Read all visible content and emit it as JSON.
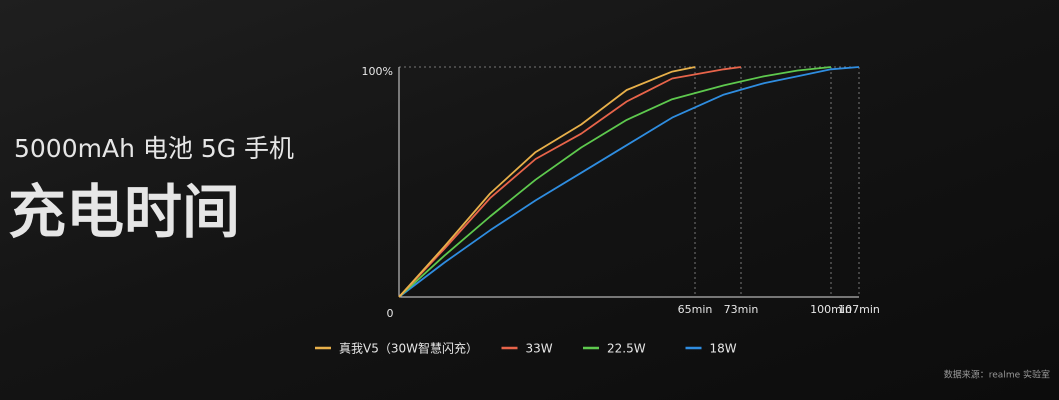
{
  "chart_data": {
    "type": "line",
    "subtitle": "5000mAh 电池 5G 手机",
    "title": "充电时间",
    "source": "数据来源：realme 实验室",
    "xlim": [
      0,
      107
    ],
    "xticks": [
      {
        "value": 65,
        "label": "65min"
      },
      {
        "value": 73,
        "label": "73min"
      },
      {
        "value": 100,
        "label": "100min"
      },
      {
        "value": 107,
        "label": "107min"
      }
    ],
    "ylim": [
      0,
      100
    ],
    "yticks": [
      0,
      {
        "value": 100,
        "label": "100%"
      }
    ],
    "grid": true,
    "legend": "bottom",
    "series": [
      {
        "name": "真我V5（30W智慧闪充）",
        "color": "#e8b04a",
        "x": [
          0,
          10,
          20,
          30,
          40,
          50,
          60,
          65
        ],
        "values": [
          0,
          22,
          45,
          63,
          75,
          90,
          98,
          100
        ]
      },
      {
        "name": "33W",
        "color": "#e8644a",
        "x": [
          0,
          10,
          20,
          30,
          40,
          50,
          60,
          70,
          73
        ],
        "values": [
          0,
          21,
          43,
          60,
          71,
          85,
          95,
          99,
          100
        ]
      },
      {
        "name": "22.5W",
        "color": "#5ec94e",
        "x": [
          0,
          10,
          20,
          30,
          40,
          50,
          60,
          70,
          80,
          90,
          100
        ],
        "values": [
          0,
          18,
          35,
          51,
          65,
          77,
          86,
          92,
          96,
          98.5,
          100
        ]
      },
      {
        "name": "18W",
        "color": "#2f8de0",
        "x": [
          0,
          10,
          20,
          30,
          40,
          50,
          60,
          70,
          80,
          90,
          100,
          107
        ],
        "values": [
          0,
          15,
          29,
          42,
          54,
          66,
          78,
          88,
          93,
          96,
          99,
          100
        ]
      }
    ]
  }
}
